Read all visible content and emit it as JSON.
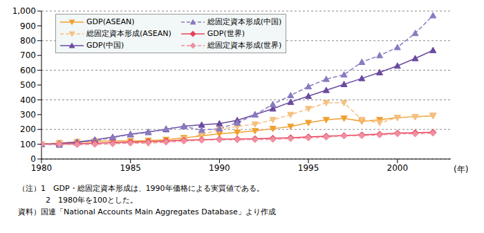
{
  "chart_data": {
    "type": "line",
    "xlabel": "(年)",
    "x": [
      1980,
      1981,
      1982,
      1983,
      1984,
      1985,
      1986,
      1987,
      1988,
      1989,
      1990,
      1991,
      1992,
      1993,
      1994,
      1995,
      1996,
      1997,
      1998,
      1999,
      2000,
      2001,
      2002
    ],
    "xlim": [
      1980,
      2003
    ],
    "xticks": [
      1980,
      1985,
      1990,
      1995,
      2000
    ],
    "ylim": [
      0,
      1000
    ],
    "yticks": [
      0,
      100,
      200,
      300,
      400,
      500,
      600,
      700,
      800,
      900,
      {
        "value": 1000,
        "label": "1,000"
      }
    ],
    "grid": true,
    "legend": "upper left",
    "series": [
      {
        "name": "GDP(ASEAN)",
        "color": "#f0a030",
        "marker": "triangle-down",
        "line_style": "solid",
        "values": [
          100,
          107,
          113,
          118,
          124,
          122,
          124,
          131,
          143,
          156,
          170,
          180,
          190,
          205,
          220,
          245,
          265,
          275,
          255,
          265,
          280,
          285,
          292
        ]
      },
      {
        "name": "総固定資本形成(ASEAN)",
        "color": "#f5c080",
        "marker": "triangle-down",
        "line_style": "dashed",
        "values": [
          100,
          110,
          118,
          123,
          125,
          110,
          105,
          115,
          135,
          165,
          200,
          220,
          235,
          265,
          300,
          340,
          380,
          380,
          265,
          245,
          280,
          285,
          295
        ]
      },
      {
        "name": "GDP(中国)",
        "color": "#6a4aa0",
        "marker": "triangle-up",
        "line_style": "solid",
        "values": [
          100,
          105,
          115,
          130,
          148,
          168,
          183,
          200,
          222,
          231,
          240,
          262,
          300,
          340,
          385,
          425,
          465,
          505,
          545,
          585,
          630,
          680,
          735
        ]
      },
      {
        "name": "総固定資本形成(中国)",
        "color": "#8a7ac0",
        "marker": "triangle-up",
        "line_style": "dashed",
        "values": [
          100,
          95,
          110,
          125,
          145,
          165,
          180,
          205,
          220,
          195,
          205,
          245,
          300,
          370,
          430,
          490,
          540,
          570,
          655,
          700,
          755,
          850,
          970
        ]
      },
      {
        "name": "GDP(世界)",
        "color": "#e8405a",
        "marker": "diamond",
        "line_style": "solid",
        "values": [
          100,
          102,
          103,
          106,
          111,
          115,
          118,
          122,
          127,
          131,
          134,
          135,
          137,
          140,
          144,
          149,
          154,
          159,
          163,
          168,
          175,
          178,
          181
        ]
      },
      {
        "name": "総固定資本形成(世界)",
        "color": "#f090a0",
        "marker": "diamond",
        "line_style": "dashed",
        "values": [
          100,
          100,
          97,
          99,
          103,
          107,
          110,
          114,
          121,
          127,
          130,
          130,
          131,
          133,
          138,
          143,
          148,
          156,
          158,
          163,
          170,
          170,
          175
        ]
      }
    ],
    "notes": [
      "（注）1　GDP・総固定資本形成は、1990年価格による実質値である。",
      "2　1980年を100とした。",
      "資料）国連「National Accounts Main Aggregates Database」より作成"
    ]
  }
}
